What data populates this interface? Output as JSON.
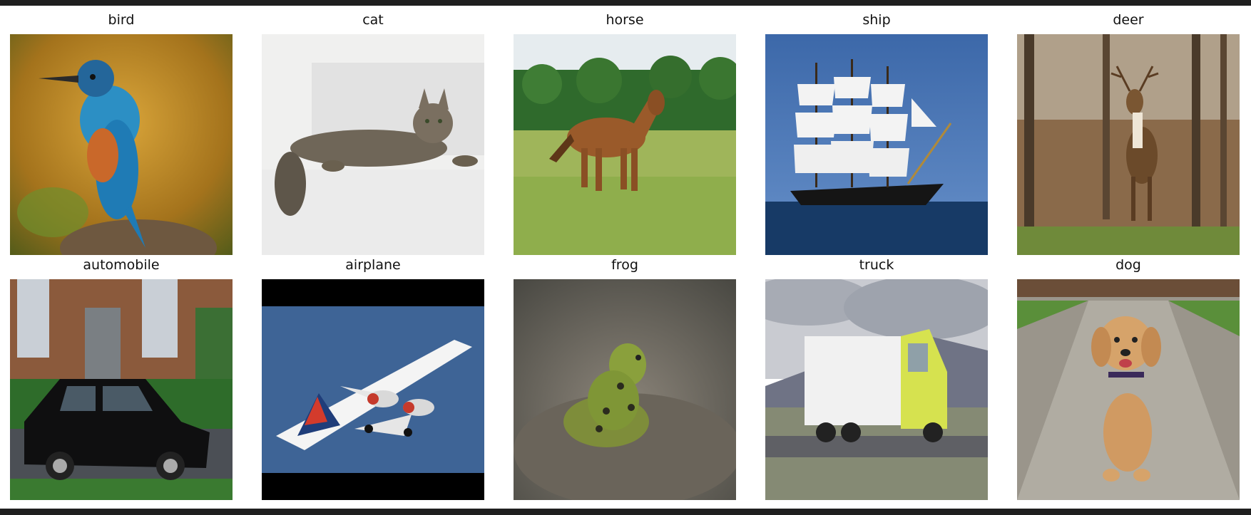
{
  "grid": {
    "labels": [
      "bird",
      "cat",
      "horse",
      "ship",
      "deer",
      "automobile",
      "airplane",
      "frog",
      "truck",
      "dog"
    ]
  },
  "colors": {
    "window_bg": "#1f1f1f",
    "panel_bg": "#ffffff"
  },
  "icons": {
    "bird": "kingfisher-photo",
    "cat": "tabby-cat-photo",
    "horse": "brown-horse-photo",
    "ship": "sailing-ship-photo",
    "deer": "deer-photo",
    "automobile": "black-sedan-photo",
    "airplane": "jet-airliner-photo",
    "frog": "green-frog-photo",
    "truck": "semi-truck-photo",
    "dog": "golden-puppy-photo"
  }
}
